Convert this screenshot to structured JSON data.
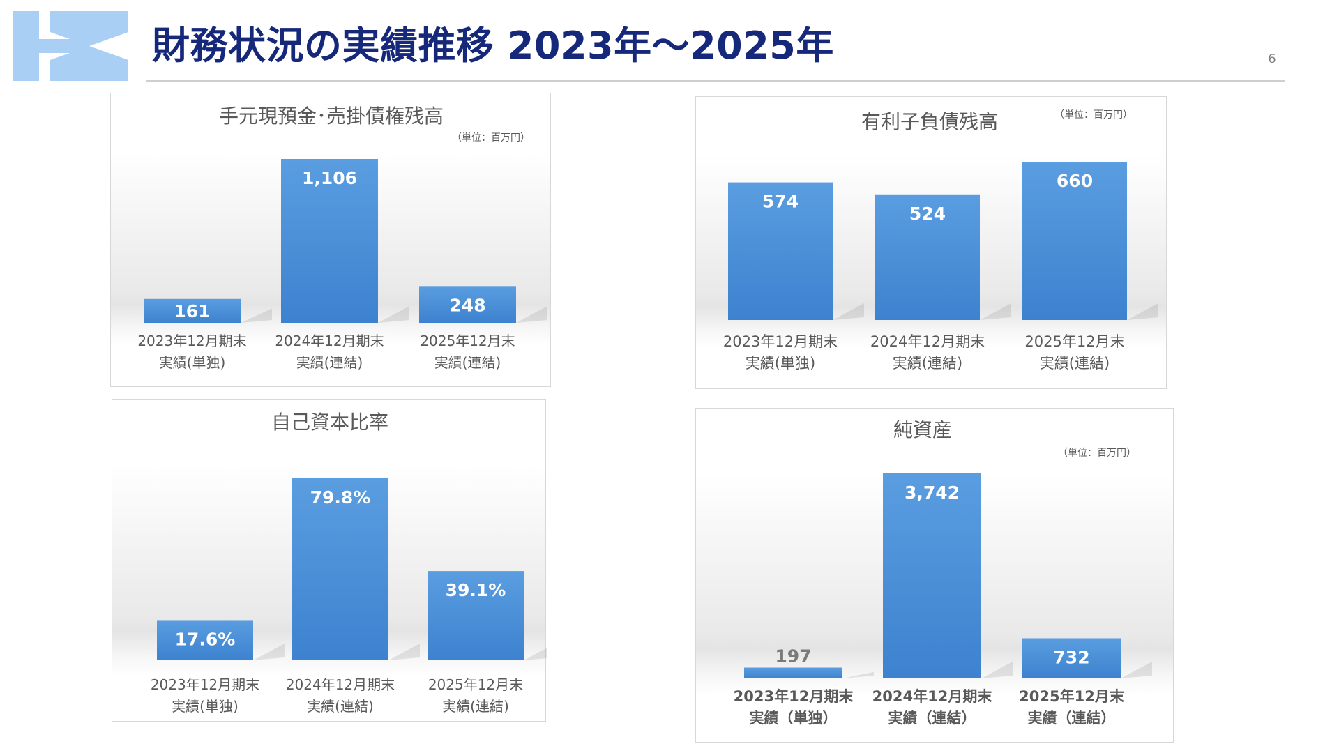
{
  "header": {
    "title": "財務状況の実績推移 2023年～2025年",
    "page_number": "6"
  },
  "colors": {
    "title": "#16287a",
    "bar": "#4a90d9",
    "logo": "#a9cff4"
  },
  "chart_data": [
    {
      "type": "bar",
      "title": "手元現預金･売掛債権残高",
      "unit_note": "（単位：百万円）",
      "categories": [
        [
          "2023年12月期末",
          "実績(単独)"
        ],
        [
          "2024年12月期末",
          "実績(連結)"
        ],
        [
          "2025年12月末",
          "実績(連結)"
        ]
      ],
      "values": [
        161,
        1106,
        248
      ],
      "data_labels": [
        "161",
        "1,106",
        "248"
      ],
      "grid": false,
      "legend": "none"
    },
    {
      "type": "bar",
      "title": "有利子負債残高",
      "unit_note": "（単位：百万円）",
      "categories": [
        [
          "2023年12月期末",
          "実績(単独)"
        ],
        [
          "2024年12月期末",
          "実績(連結)"
        ],
        [
          "2025年12月末",
          "実績(連結)"
        ]
      ],
      "values": [
        574,
        524,
        660
      ],
      "data_labels": [
        "574",
        "524",
        "660"
      ],
      "grid": false,
      "legend": "none"
    },
    {
      "type": "bar",
      "title": "自己資本比率",
      "unit_note": "",
      "categories": [
        [
          "2023年12月期末",
          "実績(単独)"
        ],
        [
          "2024年12月期末",
          "実績(連結)"
        ],
        [
          "2025年12月末",
          "実績(連結)"
        ]
      ],
      "values": [
        17.6,
        79.8,
        39.1
      ],
      "data_labels": [
        "17.6%",
        "79.8%",
        "39.1%"
      ],
      "grid": false,
      "legend": "none"
    },
    {
      "type": "bar",
      "title": "純資産",
      "unit_note": "（単位：百万円）",
      "categories": [
        [
          "2023年12月期末",
          "実績（単独）"
        ],
        [
          "2024年12月期末",
          "実績（連結）"
        ],
        [
          "2025年12月末",
          "実績（連結）"
        ]
      ],
      "values": [
        197,
        3742,
        732
      ],
      "data_labels": [
        "197",
        "3,742",
        "732"
      ],
      "grid": false,
      "legend": "none"
    }
  ]
}
